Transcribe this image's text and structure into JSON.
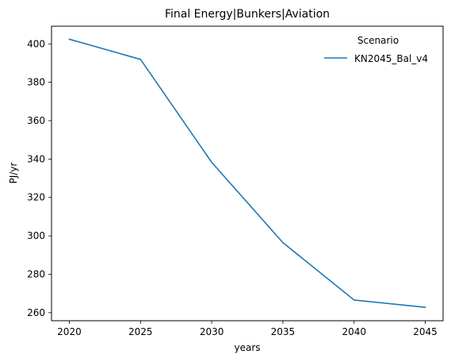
{
  "chart_data": {
    "type": "line",
    "title": "Final Energy|Bunkers|Aviation",
    "xlabel": "years",
    "ylabel": "PJ/yr",
    "x": [
      2020,
      2025,
      2030,
      2035,
      2040,
      2045
    ],
    "xticks": [
      "2020",
      "2025",
      "2030",
      "2035",
      "2040",
      "2045"
    ],
    "yticks": [
      "260",
      "280",
      "300",
      "320",
      "340",
      "360",
      "380",
      "400"
    ],
    "xlim": [
      2018.75,
      2046.25
    ],
    "ylim": [
      255.8,
      409.2
    ],
    "grid": false,
    "legend": {
      "title": "Scenario",
      "placement": "top-right"
    },
    "series": [
      {
        "name": "KN2045_Bal_v4",
        "color": "#1f77b4",
        "values": [
          402.4,
          391.9,
          338.3,
          296.5,
          266.6,
          262.8
        ]
      }
    ]
  }
}
